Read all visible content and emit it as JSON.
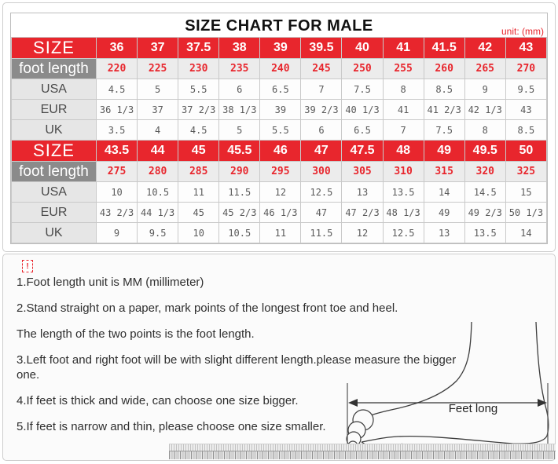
{
  "header": {
    "title": "SIZE CHART FOR MALE",
    "unit_label": "unit: (mm)"
  },
  "size_chart": {
    "row_labels": {
      "size": "SIZE",
      "foot_length": "foot length",
      "usa": "USA",
      "eur": "EUR",
      "uk": "UK"
    },
    "blocks": [
      {
        "sizes": [
          "36",
          "37",
          "37.5",
          "38",
          "39",
          "39.5",
          "40",
          "41",
          "41.5",
          "42",
          "43"
        ],
        "foot_length_mm": [
          "220",
          "225",
          "230",
          "235",
          "240",
          "245",
          "250",
          "255",
          "260",
          "265",
          "270"
        ],
        "usa": [
          "4.5",
          "5",
          "5.5",
          "6",
          "6.5",
          "7",
          "7.5",
          "8",
          "8.5",
          "9",
          "9.5"
        ],
        "eur": [
          "36 1/3",
          "37",
          "37 2/3",
          "38 1/3",
          "39",
          "39 2/3",
          "40 1/3",
          "41",
          "41 2/3",
          "42 1/3",
          "43"
        ],
        "uk": [
          "3.5",
          "4",
          "4.5",
          "5",
          "5.5",
          "6",
          "6.5",
          "7",
          "7.5",
          "8",
          "8.5"
        ]
      },
      {
        "sizes": [
          "43.5",
          "44",
          "45",
          "45.5",
          "46",
          "47",
          "47.5",
          "48",
          "49",
          "49.5",
          "50"
        ],
        "foot_length_mm": [
          "275",
          "280",
          "285",
          "290",
          "295",
          "300",
          "305",
          "310",
          "315",
          "320",
          "325"
        ],
        "usa": [
          "10",
          "10.5",
          "11",
          "11.5",
          "12",
          "12.5",
          "13",
          "13.5",
          "14",
          "14.5",
          "15"
        ],
        "eur": [
          "43 2/3",
          "44 1/3",
          "45",
          "45 2/3",
          "46 1/3",
          "47",
          "47 2/3",
          "48 1/3",
          "49",
          "49 2/3",
          "50 1/3"
        ],
        "uk": [
          "9",
          "9.5",
          "10",
          "10.5",
          "11",
          "11.5",
          "12",
          "12.5",
          "13",
          "13.5",
          "14"
        ]
      }
    ]
  },
  "notes": {
    "icon_glyph": "!",
    "lines": [
      "1.Foot length unit is MM (millimeter)",
      "2.Stand straight on a paper, mark points of the longest front toe and heel.",
      "The length of the two points is the foot length.",
      "3.Left foot and right foot will be with slight different length.please measure the bigger one.",
      "4.If feet is thick and wide, can choose one size bigger.",
      "5.If feet is narrow and thin, please choose one size smaller."
    ]
  },
  "diagram": {
    "label": "Feet long"
  },
  "colors": {
    "accent_red": "#e8262d",
    "foot_length_label_bg": "#8b8b8b",
    "foot_length_value_bg": "#ececec",
    "system_label_bg": "#e6e6e6",
    "panel_border": "#cdcdcd"
  }
}
